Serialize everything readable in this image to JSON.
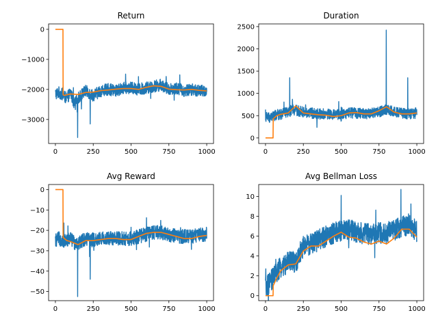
{
  "figure": {
    "background": "#ffffff",
    "colors": {
      "raw": "#1f77b4",
      "smoothed": "#ff7f0e"
    }
  },
  "chart_data": [
    {
      "type": "line",
      "title": "Return",
      "xlim": [
        -45,
        1045
      ],
      "ylim": [
        -3800,
        180
      ],
      "xticks": [
        0,
        250,
        500,
        750,
        1000
      ],
      "yticks": [
        -3000,
        -2000,
        -1000,
        0
      ],
      "series": [
        {
          "role": "raw",
          "color": "#1f77b4",
          "x": [
            0,
            25,
            50,
            75,
            100,
            125,
            150,
            175,
            200,
            250,
            300,
            350,
            400,
            450,
            500,
            550,
            600,
            650,
            700,
            750,
            800,
            850,
            900,
            950,
            1000
          ],
          "y": [
            -2150,
            -2100,
            -2200,
            -2300,
            -2100,
            -2500,
            -2300,
            -2150,
            -2050,
            -2200,
            -2050,
            -2000,
            -2050,
            -1950,
            -1950,
            -2000,
            -1950,
            -1900,
            -1850,
            -2000,
            -1950,
            -2050,
            -2000,
            -2050,
            -2050
          ],
          "noise": 400
        },
        {
          "role": "smoothed",
          "color": "#ff7f0e",
          "x": [
            0,
            50,
            51,
            60,
            100,
            150,
            200,
            250,
            300,
            350,
            400,
            450,
            500,
            550,
            600,
            650,
            700,
            750,
            800,
            850,
            900,
            950,
            1000
          ],
          "y": [
            0,
            0,
            -2180,
            -2200,
            -2150,
            -2170,
            -2100,
            -2090,
            -2040,
            -2020,
            -1990,
            -1970,
            -1970,
            -2000,
            -1930,
            -1880,
            -1900,
            -1990,
            -2010,
            -2020,
            -2000,
            -2030,
            -2050
          ]
        }
      ]
    },
    {
      "type": "line",
      "title": "Duration",
      "xlim": [
        -45,
        1045
      ],
      "ylim": [
        -125,
        2560
      ],
      "xticks": [
        0,
        250,
        500,
        750,
        1000
      ],
      "yticks": [
        0,
        500,
        1000,
        1500,
        2000,
        2500
      ],
      "series": [
        {
          "role": "raw",
          "color": "#1f77b4",
          "x": [
            0,
            25,
            50,
            75,
            100,
            125,
            150,
            175,
            200,
            250,
            300,
            350,
            400,
            450,
            500,
            550,
            600,
            650,
            700,
            750,
            800,
            850,
            900,
            950,
            1000
          ],
          "y": [
            480,
            460,
            480,
            520,
            520,
            560,
            580,
            640,
            620,
            580,
            560,
            540,
            540,
            520,
            520,
            560,
            560,
            540,
            560,
            580,
            640,
            580,
            560,
            540,
            560
          ],
          "noise": 240
        },
        {
          "role": "smoothed",
          "color": "#ff7f0e",
          "x": [
            0,
            50,
            51,
            75,
            100,
            150,
            200,
            250,
            300,
            350,
            400,
            450,
            500,
            550,
            600,
            650,
            700,
            750,
            800,
            850,
            900,
            950,
            1000
          ],
          "y": [
            0,
            0,
            430,
            500,
            530,
            560,
            720,
            560,
            540,
            520,
            510,
            480,
            500,
            560,
            570,
            540,
            540,
            610,
            700,
            580,
            540,
            540,
            560
          ]
        }
      ]
    },
    {
      "type": "line",
      "title": "Avg Reward",
      "xlim": [
        -45,
        1045
      ],
      "ylim": [
        -54.5,
        2.5
      ],
      "xticks": [
        0,
        250,
        500,
        750,
        1000
      ],
      "yticks": [
        -50,
        -40,
        -30,
        -20,
        -10,
        0
      ],
      "series": [
        {
          "role": "raw",
          "color": "#1f77b4",
          "x": [
            0,
            25,
            50,
            75,
            100,
            125,
            150,
            175,
            200,
            250,
            300,
            350,
            400,
            450,
            500,
            550,
            600,
            650,
            700,
            750,
            800,
            850,
            900,
            950,
            1000
          ],
          "y": [
            -25,
            -24,
            -25,
            -25,
            -24,
            -26,
            -26,
            -25,
            -24,
            -25,
            -24,
            -24,
            -24,
            -24,
            -24,
            -23,
            -22,
            -21,
            -21,
            -22,
            -23,
            -23,
            -23,
            -22,
            -22
          ],
          "noise": 7
        },
        {
          "role": "smoothed",
          "color": "#ff7f0e",
          "x": [
            0,
            50,
            51,
            75,
            100,
            150,
            200,
            250,
            300,
            350,
            400,
            450,
            500,
            550,
            600,
            650,
            700,
            750,
            800,
            850,
            900,
            950,
            1000
          ],
          "y": [
            0,
            0,
            -23.5,
            -25,
            -25.5,
            -27,
            -25,
            -25,
            -24.5,
            -24,
            -24,
            -24.5,
            -24.5,
            -23,
            -21.5,
            -21,
            -21,
            -22,
            -23,
            -24,
            -24,
            -23,
            -22.5
          ]
        }
      ]
    },
    {
      "type": "line",
      "title": "Avg Bellman Loss",
      "xlim": [
        -45,
        1045
      ],
      "ylim": [
        -0.5,
        11.2
      ],
      "xticks": [
        0,
        250,
        500,
        750,
        1000
      ],
      "yticks": [
        0,
        2,
        4,
        6,
        8,
        10
      ],
      "series": [
        {
          "role": "raw",
          "color": "#1f77b4",
          "x": [
            0,
            25,
            50,
            75,
            100,
            125,
            150,
            175,
            200,
            225,
            250,
            300,
            350,
            400,
            450,
            500,
            550,
            600,
            650,
            700,
            750,
            800,
            850,
            900,
            950,
            1000
          ],
          "y": [
            0.8,
            1.2,
            1.8,
            2.4,
            2.8,
            3.1,
            3.3,
            3.5,
            3.2,
            4.2,
            5.0,
            5.2,
            5.6,
            6.0,
            6.3,
            6.6,
            6.6,
            6.4,
            6.3,
            6.2,
            6.3,
            6.3,
            6.6,
            7.0,
            7.2,
            6.5
          ],
          "noise": 2.2
        },
        {
          "role": "smoothed",
          "color": "#ff7f0e",
          "x": [
            0,
            50,
            51,
            75,
            100,
            150,
            200,
            250,
            300,
            350,
            400,
            450,
            500,
            550,
            600,
            650,
            700,
            750,
            800,
            850,
            900,
            950,
            1000
          ],
          "y": [
            0,
            0,
            1.0,
            1.8,
            2.5,
            3.1,
            3.2,
            4.5,
            5.0,
            5.0,
            5.5,
            6.0,
            6.4,
            5.9,
            5.8,
            5.4,
            5.2,
            5.5,
            5.2,
            5.8,
            6.7,
            6.7,
            5.9
          ]
        }
      ]
    }
  ]
}
